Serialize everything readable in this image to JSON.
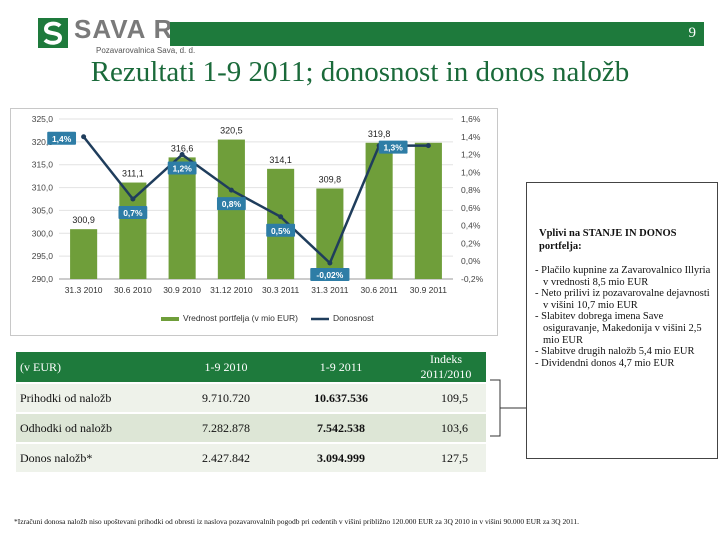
{
  "header": {
    "logo_text": "SAVA Re",
    "logo_subtitle": "Pozavarovalnica Sava, d. d.",
    "page_number": "9",
    "title": "Rezultati 1-9 2011; donosnost in donos naložb",
    "brand_color": "#1e7a3c"
  },
  "chart_data": {
    "type": "bar",
    "categories": [
      "31.3 2010",
      "30.6 2010",
      "30.9 2010",
      "31.12 2010",
      "30.3 2011",
      "31.3 2011",
      "30.6 2011",
      "30.9 2011"
    ],
    "series": [
      {
        "name": "Vrednost portfelja (v mio EUR)",
        "type": "bar",
        "axis": "left",
        "color": "#6f9e3a",
        "values": [
          300.9,
          311.1,
          316.6,
          320.5,
          314.1,
          309.8,
          319.8,
          319.8
        ]
      },
      {
        "name": "Donosnost",
        "type": "line",
        "axis": "right",
        "color": "#1f3d5c",
        "values": [
          1.4,
          0.7,
          1.2,
          0.8,
          0.5,
          -0.02,
          1.3,
          1.3
        ]
      }
    ],
    "bar_labels": [
      "300,9",
      "311,1",
      "316,6",
      "320,5",
      "314,1",
      "309,8",
      "319,8"
    ],
    "bar_label_indices": [
      0,
      1,
      2,
      3,
      4,
      5,
      6
    ],
    "line_labels": [
      "1,4%",
      "0,7%",
      "1,2%",
      "0,8%",
      "0,5%",
      "-0,02%",
      "1,3%"
    ],
    "line_label_indices": [
      0,
      1,
      2,
      3,
      4,
      5,
      6
    ],
    "y_left": {
      "min": 290,
      "max": 325,
      "ticks": [
        "290,0",
        "295,0",
        "300,0",
        "305,0",
        "310,0",
        "315,0",
        "320,0",
        "325,0"
      ]
    },
    "y_right": {
      "min": -0.2,
      "max": 1.6,
      "ticks": [
        "-0,2%",
        "0,0%",
        "0,2%",
        "0,4%",
        "0,6%",
        "0,8%",
        "1,0%",
        "1,2%",
        "1,4%",
        "1,6%"
      ]
    },
    "legend": [
      "Vrednost portfelja (v mio EUR)",
      "Donosnost"
    ],
    "legend_position": "bottom",
    "grid": true
  },
  "table": {
    "headers": [
      "(v EUR)",
      "1-9 2010",
      "1-9 2011",
      "Indeks 2011/2010"
    ],
    "rows": [
      [
        "Prihodki od naložb",
        "9.710.720",
        "10.637.536",
        "109,5"
      ],
      [
        "Odhodki od naložb",
        "7.282.878",
        "7.542.538",
        "103,6"
      ],
      [
        "Donos naložb*",
        "2.427.842",
        "3.094.999",
        "127,5"
      ]
    ]
  },
  "sidebar": {
    "heading": "Vplivi na STANJE IN DONOS portfelja:",
    "items": [
      "- Plačilo kupnine za Zavarovalnico Illyria v vrednosti 8,5 mio EUR",
      "- Neto prilivi iz pozavarovalne dejavnosti v višini 10,7 mio EUR",
      "- Slabitev dobrega imena Save osiguravanje, Makedonija v višini 2,5 mio EUR",
      "- Slabitve drugih naložb 5,4 mio EUR",
      "- Dividendni donos 4,7 mio EUR"
    ]
  },
  "footnote": "*Izračuni donosa naložb niso upoštevani prihodki od obresti iz naslova pozavarovalnih pogodb pri cedentih v višini približno 120.000 EUR za 3Q 2010 in v višini 90.000 EUR za 3Q 2011."
}
